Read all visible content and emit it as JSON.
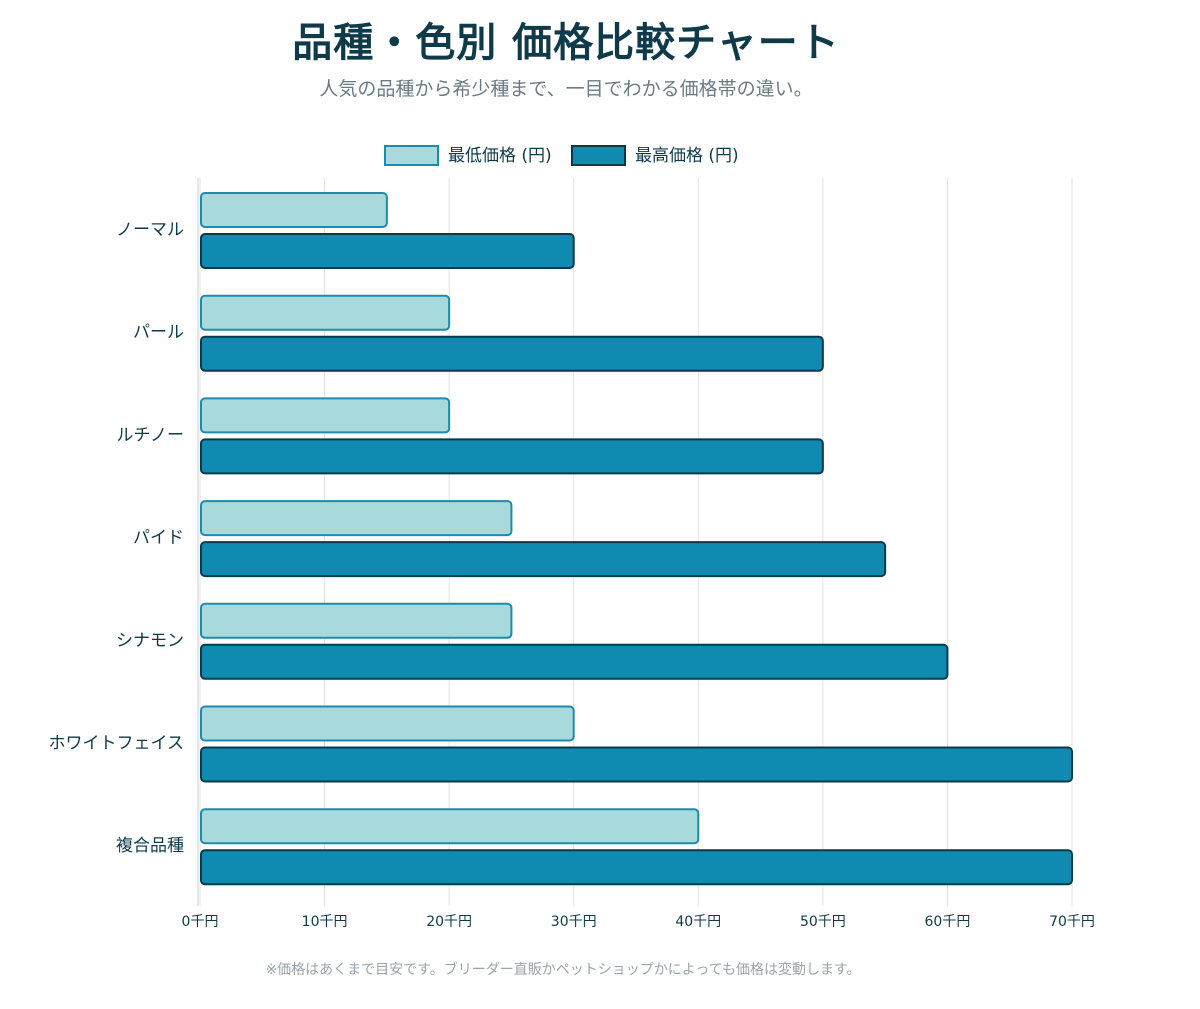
{
  "header": {
    "title": "品種・色別 価格比較チャート",
    "subtitle": "人気の品種から希少種まで、一目でわかる価格帯の違い。"
  },
  "footer": {
    "note": "※価格はあくまで目安です。ブリーダー直販かペットショップかによっても価格は変動します。"
  },
  "colors": {
    "min_fill": "#a8dadc",
    "min_stroke": "#1d8aae",
    "max_fill": "#118ab2",
    "max_stroke": "#073b4c",
    "grid": "#e3e3e3",
    "text": "#0e3a4a"
  },
  "chart_data": {
    "type": "bar",
    "orientation": "horizontal",
    "categories": [
      "ノーマル",
      "パール",
      "ルチノー",
      "パイド",
      "シナモン",
      "ホワイトフェイス",
      "複合品種"
    ],
    "series": [
      {
        "name": "最低価格 (円)",
        "values": [
          15000,
          20000,
          20000,
          25000,
          25000,
          30000,
          40000
        ]
      },
      {
        "name": "最高価格 (円)",
        "values": [
          30000,
          50000,
          50000,
          55000,
          60000,
          70000,
          70000
        ]
      }
    ],
    "xlim": [
      0,
      70000
    ],
    "x_ticks": [
      0,
      10000,
      20000,
      30000,
      40000,
      50000,
      60000,
      70000
    ],
    "x_tick_labels": [
      "0千円",
      "10千円",
      "20千円",
      "30千円",
      "40千円",
      "50千円",
      "60千円",
      "70千円"
    ],
    "grid": true,
    "legend_position": "top"
  }
}
